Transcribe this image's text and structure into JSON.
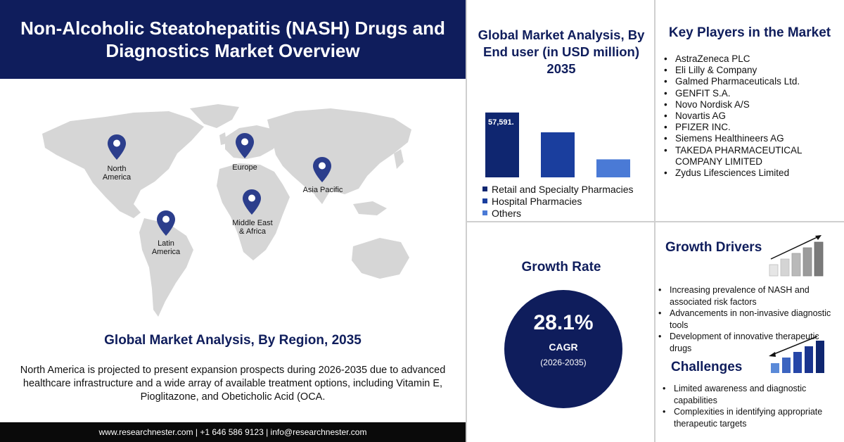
{
  "title": "Non-Alcoholic Steatohepatitis (NASH) Drugs and Diagnostics Market Overview",
  "map": {
    "regions": [
      {
        "name": "North America",
        "label_lines": [
          "North",
          "America"
        ]
      },
      {
        "name": "Europe",
        "label_lines": [
          "Europe"
        ]
      },
      {
        "name": "Asia Pacific",
        "label_lines": [
          "Asia Pacific"
        ]
      },
      {
        "name": "Middle East & Africa",
        "label_lines": [
          "Middle East",
          "& Africa"
        ]
      },
      {
        "name": "Latin America",
        "label_lines": [
          "Latin",
          "America"
        ]
      }
    ],
    "pin_color": "#2c3e8c"
  },
  "region_section": {
    "title": "Global Market Analysis, By Region, 2035",
    "text": "North America is projected to present expansion prospects during 2026-2035 due to advanced healthcare infrastructure and a wide array of available treatment options, including Vitamin E, Pioglitazone, and Obeticholic Acid (OCA."
  },
  "footer": {
    "text": "www.researchnester.com | +1 646 586 9123 | info@researchnester.com"
  },
  "end_user": {
    "title": "Global Market Analysis, By End user (in USD million) 2035"
  },
  "chart_data": {
    "type": "bar",
    "categories": [
      "Retail and Specialty Pharmacies",
      "Hospital Pharmacies",
      "Others"
    ],
    "values": [
      57591,
      40000,
      16000
    ],
    "value_label": "57,591.",
    "colors": [
      "#0f2670",
      "#1a3e9e",
      "#4a7ad6"
    ],
    "ylim": [
      0,
      60000
    ],
    "legend_placement": "bottom",
    "grid": false
  },
  "key_players": {
    "title": "Key Players in the Market",
    "items": [
      "AstraZeneca PLC",
      "Eli Lilly & Company",
      "Galmed Pharmaceuticals Ltd.",
      "GENFIT S.A.",
      "Novo Nordisk A/S",
      "Novartis AG",
      "PFIZER INC.",
      "Siemens Healthineers AG",
      "TAKEDA PHARMACEUTICAL COMPANY LIMITED",
      "Zydus Lifesciences Limited"
    ]
  },
  "growth_rate": {
    "title": "Growth Rate",
    "value": "28.1%",
    "label": "CAGR",
    "period": "(2026-2035)"
  },
  "growth_drivers": {
    "title": "Growth Drivers",
    "items": [
      "Increasing prevalence of NASH and associated risk factors",
      "Advancements in non-invasive diagnostic tools",
      "Development of innovative therapeutic drugs"
    ]
  },
  "challenges": {
    "title": "Challenges",
    "items": [
      "Limited awareness and diagnostic capabilities",
      "Complexities in identifying appropriate therapeutic targets"
    ]
  },
  "colors": {
    "navy": "#0f1d5c",
    "map_land": "#d9d9d9"
  }
}
